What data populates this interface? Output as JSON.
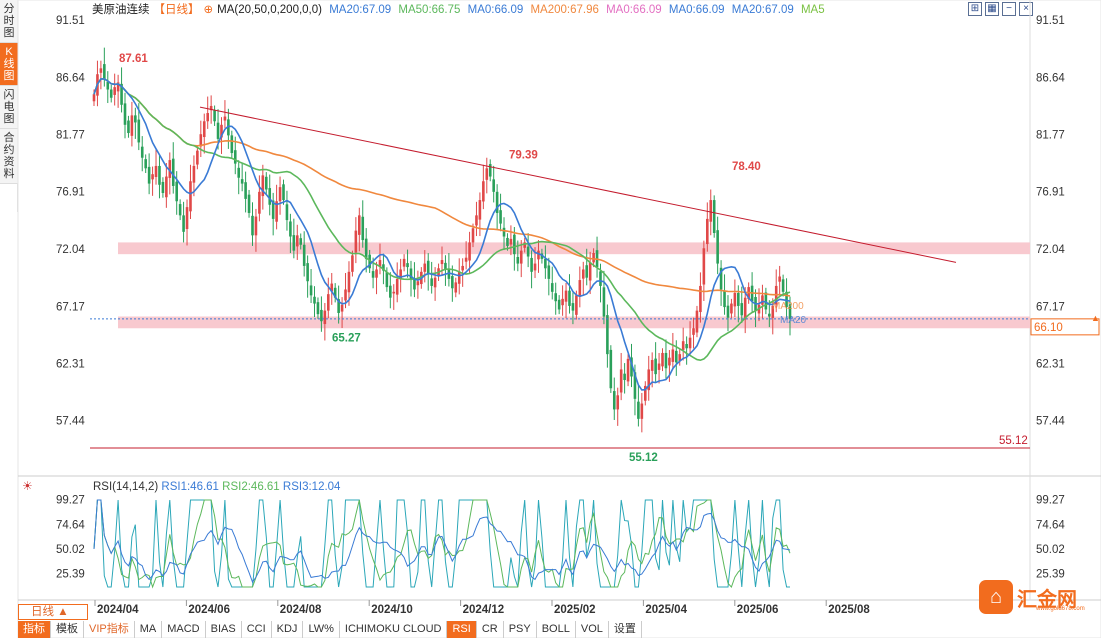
{
  "left_tabs": [
    {
      "label": "分时图",
      "active": false
    },
    {
      "label": "K线图",
      "active": true
    },
    {
      "label": "闪电图",
      "active": false
    },
    {
      "label": "合约资料",
      "active": false
    }
  ],
  "legend": {
    "name": "美原油连续",
    "period": "【日线】",
    "circle": "⊕",
    "ma_def": "MA(20,50,0,200,0,0)",
    "ma20": "MA20:67.09",
    "ma50": "MA50:66.75",
    "ma0a": "MA0:66.09",
    "ma200": "MA200:67.96",
    "ma0b": "MA0:66.09",
    "ma0c": "MA0:66.09",
    "ma20b": "MA20:67.09",
    "ma5": "MA5"
  },
  "toolbar_icons": [
    "fullscreen-icon",
    "grid-icon",
    "minus-icon",
    "close-icon"
  ],
  "rsi_legend": {
    "title": "RSI(14,14,2)",
    "rsi1": "RSI1:46.61",
    "rsi2": "RSI2:46.61",
    "rsi3": "RSI3:12.04"
  },
  "period_button": "日线 ▲",
  "bottom_bar": [
    {
      "label": "指标",
      "style": "first"
    },
    {
      "label": "模板",
      "style": ""
    },
    {
      "label": "VIP指标",
      "style": "vip"
    },
    {
      "label": "MA",
      "style": ""
    },
    {
      "label": "MACD",
      "style": ""
    },
    {
      "label": "BIAS",
      "style": ""
    },
    {
      "label": "CCI",
      "style": ""
    },
    {
      "label": "KDJ",
      "style": ""
    },
    {
      "label": "LW%",
      "style": ""
    },
    {
      "label": "ICHIMOKU CLOUD",
      "style": ""
    },
    {
      "label": "RSI",
      "style": "active"
    },
    {
      "label": "CR",
      "style": ""
    },
    {
      "label": "PSY",
      "style": ""
    },
    {
      "label": "BOLL",
      "style": ""
    },
    {
      "label": "VOL",
      "style": ""
    },
    {
      "label": "设置",
      "style": ""
    }
  ],
  "logo": {
    "text": "汇金网",
    "url": "www.gold678.com"
  },
  "colors": {
    "accent": "#f26c1e",
    "up": "#e04848",
    "down": "#2aa05a",
    "ma20": "#3a7bd5",
    "ma50": "#5cb85c",
    "ma200": "#f0883e",
    "band": "#f8c9cf",
    "trendline": "#c41c2e"
  },
  "chart_data": [
    {
      "type": "candlestick",
      "title": "美原油连续",
      "period": "日线",
      "y_ticks": [
        "91.51",
        "86.64",
        "81.77",
        "76.91",
        "72.04",
        "67.17",
        "62.31",
        "57.44"
      ],
      "y_tick_values": [
        91.51,
        86.64,
        81.77,
        76.91,
        72.04,
        67.17,
        62.31,
        57.44
      ],
      "ylim": [
        55.12,
        91.51
      ],
      "x_ticks": [
        "2024/04",
        "2024/06",
        "2024/08",
        "2024/10",
        "2024/12",
        "2025/02",
        "2025/04",
        "2025/06",
        "2025/08"
      ],
      "current_price": "66.10",
      "current_price_value": 66.1,
      "annotations": [
        {
          "label": "87.61",
          "value": 87.61,
          "date": "2024/04"
        },
        {
          "label": "65.27",
          "value": 65.27,
          "date": "2024/09"
        },
        {
          "label": "79.39",
          "value": 79.39,
          "date": "2025/01"
        },
        {
          "label": "55.12",
          "value": 55.12,
          "date": "2025/04"
        },
        {
          "label": "78.40",
          "value": 78.4,
          "date": "2025/06"
        }
      ],
      "hline_label": "55.12",
      "hline_value": 55.12,
      "bands": [
        {
          "low": 71.6,
          "high": 72.6
        },
        {
          "low": 65.3,
          "high": 66.3
        }
      ],
      "trendline": {
        "from": {
          "date": "2024/06",
          "value": 84.1
        },
        "to": {
          "date": "2025/08",
          "value": 70.9
        }
      },
      "end_labels": [
        "MA200",
        "MA20"
      ],
      "close_series": [
        85.2,
        86.9,
        87.4,
        86.5,
        85.6,
        84.9,
        85.8,
        86.2,
        84.3,
        82.6,
        81.9,
        83.4,
        82.8,
        81.1,
        79.8,
        78.9,
        77.6,
        78.4,
        79.1,
        77.5,
        76.8,
        78.2,
        79.6,
        77.4,
        76.1,
        74.9,
        73.5,
        75.6,
        77.8,
        79.1,
        80.4,
        81.8,
        82.9,
        83.6,
        84.2,
        82.9,
        81.4,
        82.6,
        83.3,
        81.7,
        80.2,
        79.3,
        78.1,
        77.6,
        76.3,
        75.1,
        73.2,
        74.8,
        76.9,
        78.3,
        77.1,
        75.8,
        74.6,
        76.1,
        77.3,
        76.2,
        74.5,
        73.1,
        71.9,
        73.2,
        72.4,
        70.6,
        69.3,
        68.1,
        67.4,
        66.5,
        65.9,
        66.8,
        68.2,
        69.1,
        67.9,
        66.6,
        67.3,
        68.6,
        70.1,
        71.5,
        73.6,
        74.9,
        72.8,
        71.2,
        70.4,
        69.6,
        70.3,
        71.1,
        70.2,
        68.8,
        67.9,
        68.4,
        69.5,
        70.3,
        71.2,
        70.5,
        69.4,
        68.6,
        69.3,
        70.1,
        70.8,
        69.9,
        68.9,
        69.6,
        70.4,
        71.1,
        70.3,
        69.5,
        68.7,
        69.2,
        70.1,
        70.6,
        71.3,
        72.6,
        73.8,
        74.9,
        76.2,
        77.8,
        78.9,
        78.2,
        76.9,
        75.1,
        74.2,
        73.1,
        72.3,
        72.9,
        71.6,
        70.8,
        71.9,
        72.6,
        71.4,
        70.1,
        70.8,
        71.9,
        71.2,
        70.4,
        69.5,
        68.4,
        67.6,
        66.9,
        67.8,
        68.5,
        67.2,
        66.8,
        68.1,
        69.4,
        70.3,
        69.6,
        70.9,
        71.7,
        70.5,
        68.9,
        66.3,
        63.1,
        60.2,
        58.4,
        59.6,
        61.8,
        60.9,
        62.7,
        61.2,
        59.3,
        57.6,
        58.9,
        60.4,
        61.8,
        62.6,
        61.4,
        62.3,
        63.2,
        61.9,
        62.8,
        63.5,
        62.4,
        63.1,
        64.2,
        63.6,
        64.5,
        65.3,
        66.8,
        68.9,
        72.1,
        74.6,
        76.2,
        73.4,
        70.8,
        68.6,
        67.1,
        66.2,
        67.4,
        68.3,
        67.2,
        66.4,
        67.9,
        68.8,
        67.6,
        66.8,
        67.3,
        68.1,
        66.9,
        66.3,
        67.2,
        68.9,
        69.7,
        68.4,
        67.1,
        66.1
      ]
    },
    {
      "type": "line",
      "title": "RSI(14,14,2)",
      "y_ticks": [
        "99.27",
        "74.64",
        "50.02",
        "25.39"
      ],
      "y_tick_values": [
        99.27,
        74.64,
        50.02,
        25.39
      ],
      "ylim": [
        10,
        102
      ],
      "x_ticks": [
        "2024/04",
        "2024/06",
        "2024/08",
        "2024/10",
        "2024/12",
        "2025/02",
        "2025/04",
        "2025/06",
        "2025/08"
      ],
      "series": [
        {
          "name": "RSI1",
          "last": 46.61
        },
        {
          "name": "RSI2",
          "last": 46.61
        },
        {
          "name": "RSI3",
          "last": 12.04
        }
      ]
    }
  ]
}
